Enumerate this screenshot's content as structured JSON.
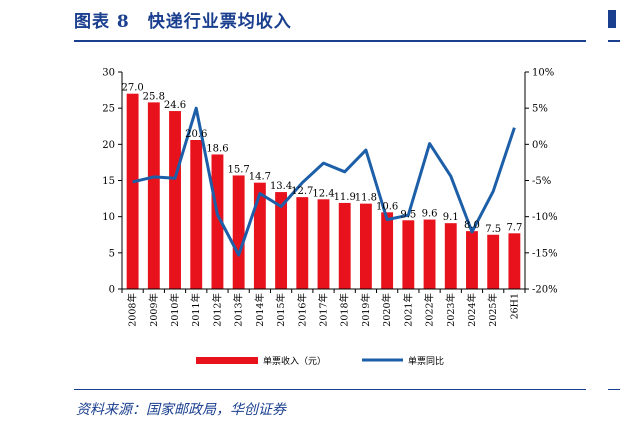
{
  "figure": {
    "title": "图表 8　快递行业票均收入",
    "source": "资料来源：国家邮政局，华创证券"
  },
  "colors": {
    "bar": "#e8121d",
    "line": "#1c5fa8",
    "axis": "#000000",
    "accent": "#1a3f8f"
  },
  "chart_data": {
    "type": "bar",
    "title": "",
    "categories": [
      "2008年",
      "2009年",
      "2010年",
      "2011年",
      "2012年",
      "2013年",
      "2014年",
      "2015年",
      "2016年",
      "2017年",
      "2018年",
      "2019年",
      "2020年",
      "2021年",
      "2022年",
      "2023年",
      "2024年",
      "2025年",
      "26H1"
    ],
    "series": [
      {
        "name": "单票收入（元）",
        "type": "bar",
        "axis": "left",
        "values": [
          27.0,
          25.8,
          24.6,
          20.6,
          18.6,
          15.7,
          14.7,
          13.4,
          12.7,
          12.4,
          11.9,
          11.8,
          10.6,
          9.5,
          9.6,
          9.1,
          8.0,
          7.5,
          7.7
        ],
        "labels": [
          "27.0",
          "25.8",
          "24.6",
          "20.6",
          "18.6",
          "15.7",
          "14.7",
          "13.4",
          "12.7",
          "12.4",
          "11.9",
          "11.8",
          "10.6",
          "9.5",
          "9.6",
          "9.1",
          "8.0",
          "7.5",
          "7.7"
        ]
      },
      {
        "name": "单票同比",
        "type": "line",
        "axis": "right",
        "values": [
          -5.2,
          -4.5,
          -4.7,
          5.0,
          -9.7,
          -15.3,
          -6.8,
          -8.6,
          -5.3,
          -2.6,
          -3.8,
          -0.8,
          -10.4,
          -9.8,
          0.1,
          -4.4,
          -12.1,
          -6.5,
          2.3
        ]
      }
    ],
    "y_left": {
      "ylim": [
        0,
        30
      ],
      "ticks": [
        "0",
        "5",
        "10",
        "15",
        "20",
        "25",
        "30"
      ]
    },
    "y_right": {
      "ylim": [
        -20,
        10
      ],
      "ticks": [
        "-20%",
        "-15%",
        "-10%",
        "-5%",
        "0%",
        "5%",
        "10%"
      ]
    },
    "grid": false,
    "legend": "bottom"
  }
}
